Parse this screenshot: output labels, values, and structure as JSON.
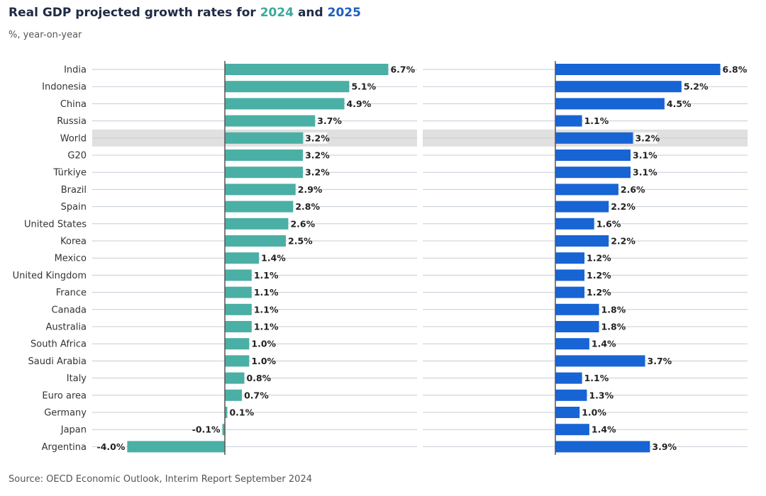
{
  "title": {
    "prefix": "Real GDP projected growth rates for ",
    "year1": "2024",
    "middle": " and ",
    "year2": "2025"
  },
  "subtitle": "%, year-on-year",
  "source": "Source: OECD Economic Outlook, Interim Report September 2024",
  "colors": {
    "series_2024": "#4aafa5",
    "series_2025": "#1764d4",
    "highlight_row": "#e0e0e0",
    "grid": "#c5ccd6",
    "zero_axis": "#555555",
    "title_accent_2024": "#3aa89c",
    "title_accent_2025": "#1c5fc4"
  },
  "chart_data": {
    "type": "bar",
    "orientation": "horizontal",
    "highlight_category": "World",
    "categories": [
      "India",
      "Indonesia",
      "China",
      "Russia",
      "World",
      "G20",
      "Türkiye",
      "Brazil",
      "Spain",
      "United States",
      "Korea",
      "Mexico",
      "United Kingdom",
      "France",
      "Canada",
      "Australia",
      "South Africa",
      "Saudi Arabia",
      "Italy",
      "Euro area",
      "Germany",
      "Japan",
      "Argentina"
    ],
    "series": [
      {
        "name": "2024",
        "values": [
          6.7,
          5.1,
          4.9,
          3.7,
          3.2,
          3.2,
          3.2,
          2.9,
          2.8,
          2.6,
          2.5,
          1.4,
          1.1,
          1.1,
          1.1,
          1.1,
          1.0,
          1.0,
          0.8,
          0.7,
          0.1,
          -0.1,
          -4.0
        ],
        "labels": [
          "6.7%",
          "5.1%",
          "4.9%",
          "3.7%",
          "3.2%",
          "3.2%",
          "3.2%",
          "2.9%",
          "2.8%",
          "2.6%",
          "2.5%",
          "1.4%",
          "1.1%",
          "1.1%",
          "1.1%",
          "1.1%",
          "1.0%",
          "1.0%",
          "0.8%",
          "0.7%",
          "0.1%",
          "-0.1%",
          "-4.0%"
        ]
      },
      {
        "name": "2025",
        "values": [
          6.8,
          5.2,
          4.5,
          1.1,
          3.2,
          3.1,
          3.1,
          2.6,
          2.2,
          1.6,
          2.2,
          1.2,
          1.2,
          1.2,
          1.8,
          1.8,
          1.4,
          3.7,
          1.1,
          1.3,
          1.0,
          1.4,
          3.9
        ],
        "labels": [
          "6.8%",
          "5.2%",
          "4.5%",
          "1.1%",
          "3.2%",
          "3.1%",
          "3.1%",
          "2.6%",
          "2.2%",
          "1.6%",
          "2.2%",
          "1.2%",
          "1.2%",
          "1.2%",
          "1.8%",
          "1.8%",
          "1.4%",
          "3.7%",
          "1.1%",
          "1.3%",
          "1.0%",
          "1.4%",
          "3.9%"
        ]
      }
    ]
  }
}
